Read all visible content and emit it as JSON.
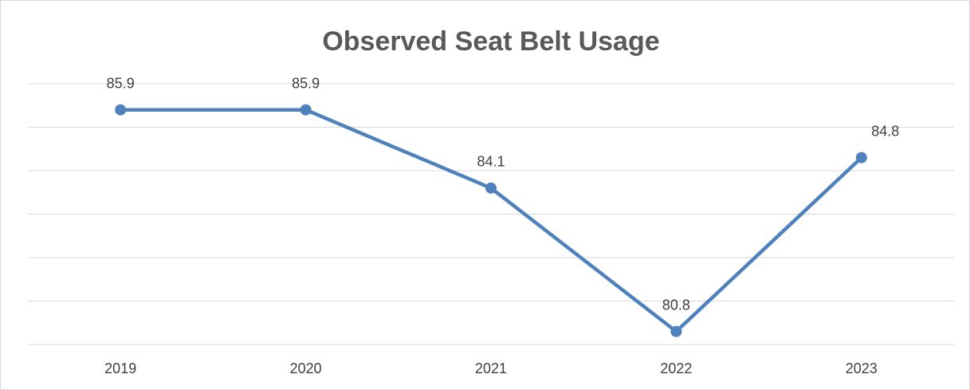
{
  "chart_data": {
    "type": "line",
    "title": "Observed Seat Belt Usage",
    "categories": [
      "2019",
      "2020",
      "2021",
      "2022",
      "2023"
    ],
    "series": [
      {
        "name": "Observed Seat Belt Usage",
        "color": "#4f81bd",
        "values": [
          85.9,
          85.9,
          84.1,
          80.8,
          84.8
        ]
      }
    ],
    "ylim": [
      80.5,
      86.5
    ],
    "yticks": [
      80.5,
      81.5,
      82.5,
      83.5,
      84.5,
      85.5,
      86.5
    ],
    "grid": true
  }
}
